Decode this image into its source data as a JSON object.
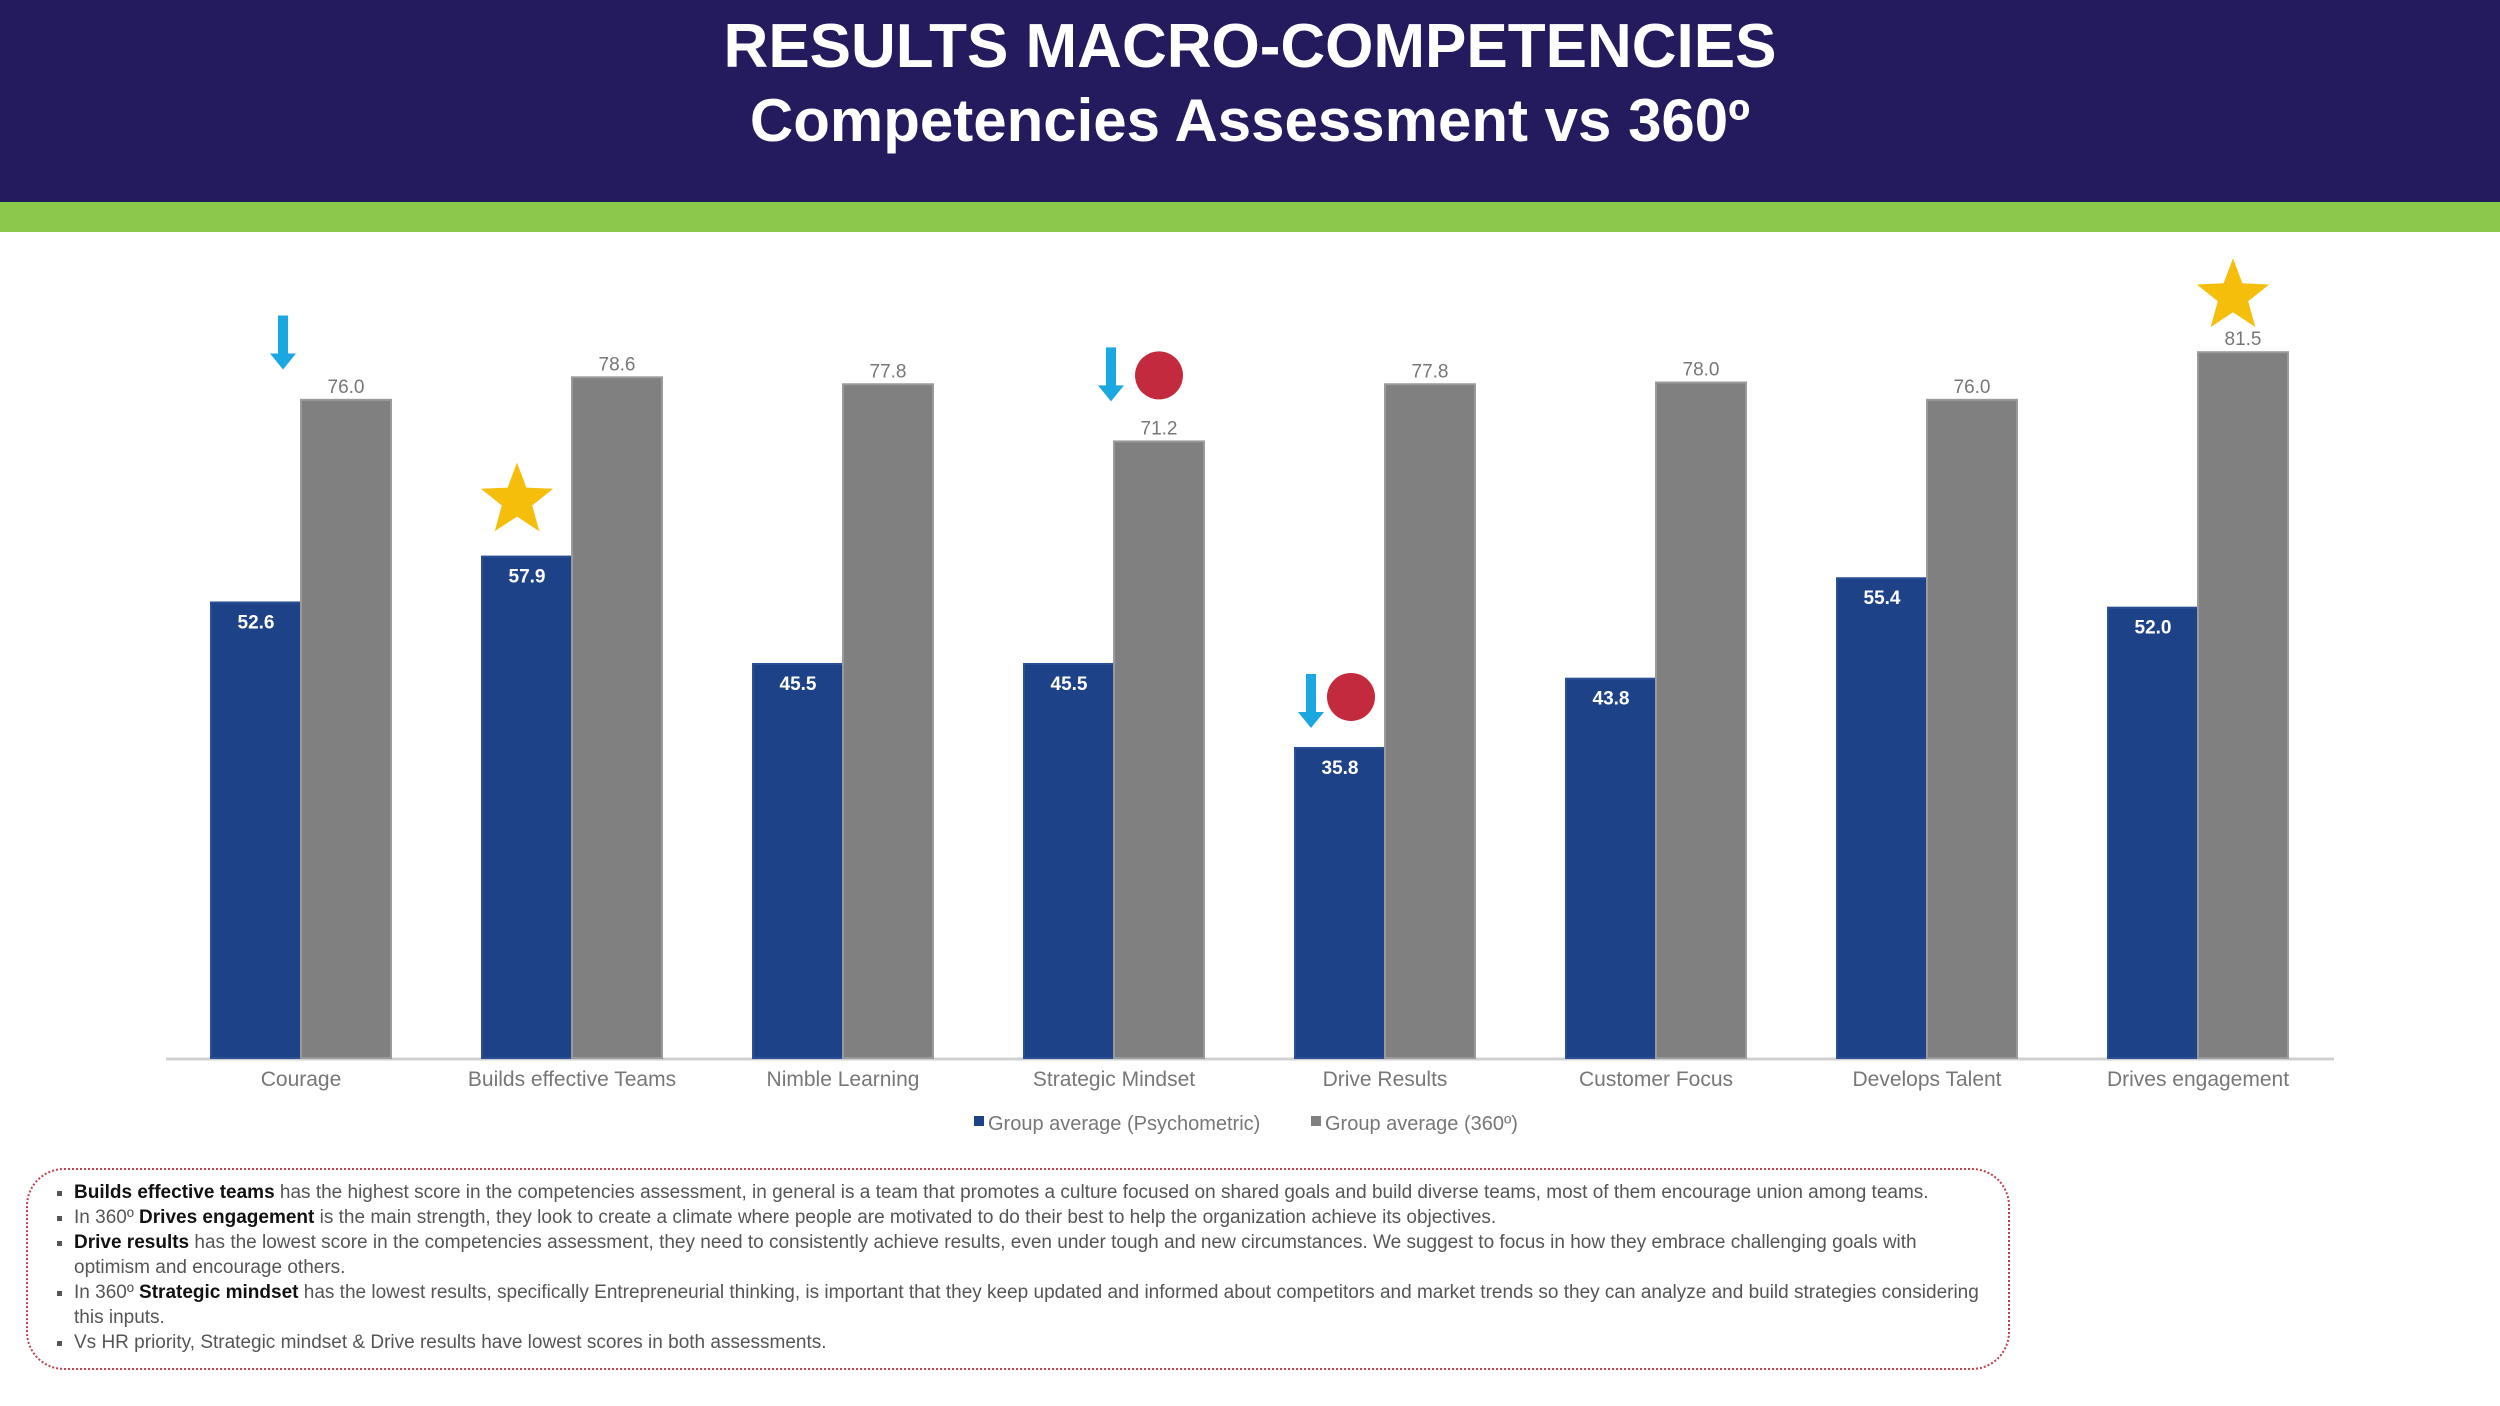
{
  "header": {
    "title": "RESULTS MACRO-COMPETENCIES",
    "subtitle": "Competencies Assessment vs 360º"
  },
  "colors": {
    "header_bg": "#241a5e",
    "band": "#8cc84b",
    "psychometric": "#1e4288",
    "three_sixty": "#808080",
    "star": "#f5be0a",
    "alert_dot": "#c42a3e",
    "down_arrow": "#1ba8e0"
  },
  "chart_data": {
    "type": "bar",
    "title": "",
    "xlabel": "",
    "ylabel": "",
    "ylim": [
      0,
      90
    ],
    "grid": false,
    "legend_position": "bottom",
    "categories": [
      "Courage",
      "Builds effective Teams",
      "Nimble Learning",
      "Strategic Mindset",
      "Drive Results",
      "Customer Focus",
      "Develops Talent",
      "Drives engagement"
    ],
    "series": [
      {
        "name": "Group average (Psychometric)",
        "values": [
          52.6,
          57.9,
          45.5,
          45.5,
          35.8,
          43.8,
          55.4,
          52.0
        ],
        "labels": [
          "52.6",
          "57.9",
          "45.5",
          "45.5",
          "35.8",
          "43.8",
          "55.4",
          "52.0"
        ]
      },
      {
        "name": "Group average (360º)",
        "values": [
          76.0,
          78.6,
          77.8,
          71.2,
          77.8,
          78.0,
          76.0,
          81.5
        ],
        "labels": [
          "76.0",
          "78.6",
          "77.8",
          "71.2",
          "77.8",
          "78.0",
          "76.0",
          "81.5"
        ]
      }
    ],
    "annotations": [
      {
        "category": "Courage",
        "series": 0,
        "icon": "down-arrow-icon"
      },
      {
        "category": "Builds effective Teams",
        "series": 0,
        "icon": "star-icon"
      },
      {
        "category": "Strategic Mindset",
        "series": 1,
        "icon": "down-arrow-icon"
      },
      {
        "category": "Strategic Mindset",
        "series": 1,
        "icon": "alert-dot-icon"
      },
      {
        "category": "Drive Results",
        "series": 0,
        "icon": "down-arrow-icon"
      },
      {
        "category": "Drive Results",
        "series": 0,
        "icon": "alert-dot-icon"
      },
      {
        "category": "Drives engagement",
        "series": 1,
        "icon": "star-icon"
      }
    ]
  },
  "notes": [
    {
      "bold": "Builds effective teams",
      "prefix": "",
      "text": " has the highest score in the competencies assessment, in general is a team that promotes a culture focused on shared goals and build diverse teams, most of them encourage union among teams."
    },
    {
      "bold": "Drives engagement",
      "prefix": "In 360º ",
      "text": " is the main strength,  they look to create a climate where people are motivated to do their best to help the organization achieve its objectives."
    },
    {
      "bold": "Drive results",
      "prefix": "",
      "text": " has the lowest score in the competencies assessment, they need to consistently achieve results, even under tough and new circumstances. We suggest to focus in how they embrace challenging goals with optimism and encourage others."
    },
    {
      "bold": "Strategic mindset",
      "prefix": "In 360º ",
      "text": " has the lowest results,  specifically Entrepreneurial thinking,  is important that they keep updated and informed about competitors and market trends so they can analyze and build strategies considering this inputs."
    },
    {
      "bold": "",
      "prefix": "Vs HR  priority, Strategic mindset & Drive results have lowest scores in both assessments.",
      "text": ""
    }
  ]
}
